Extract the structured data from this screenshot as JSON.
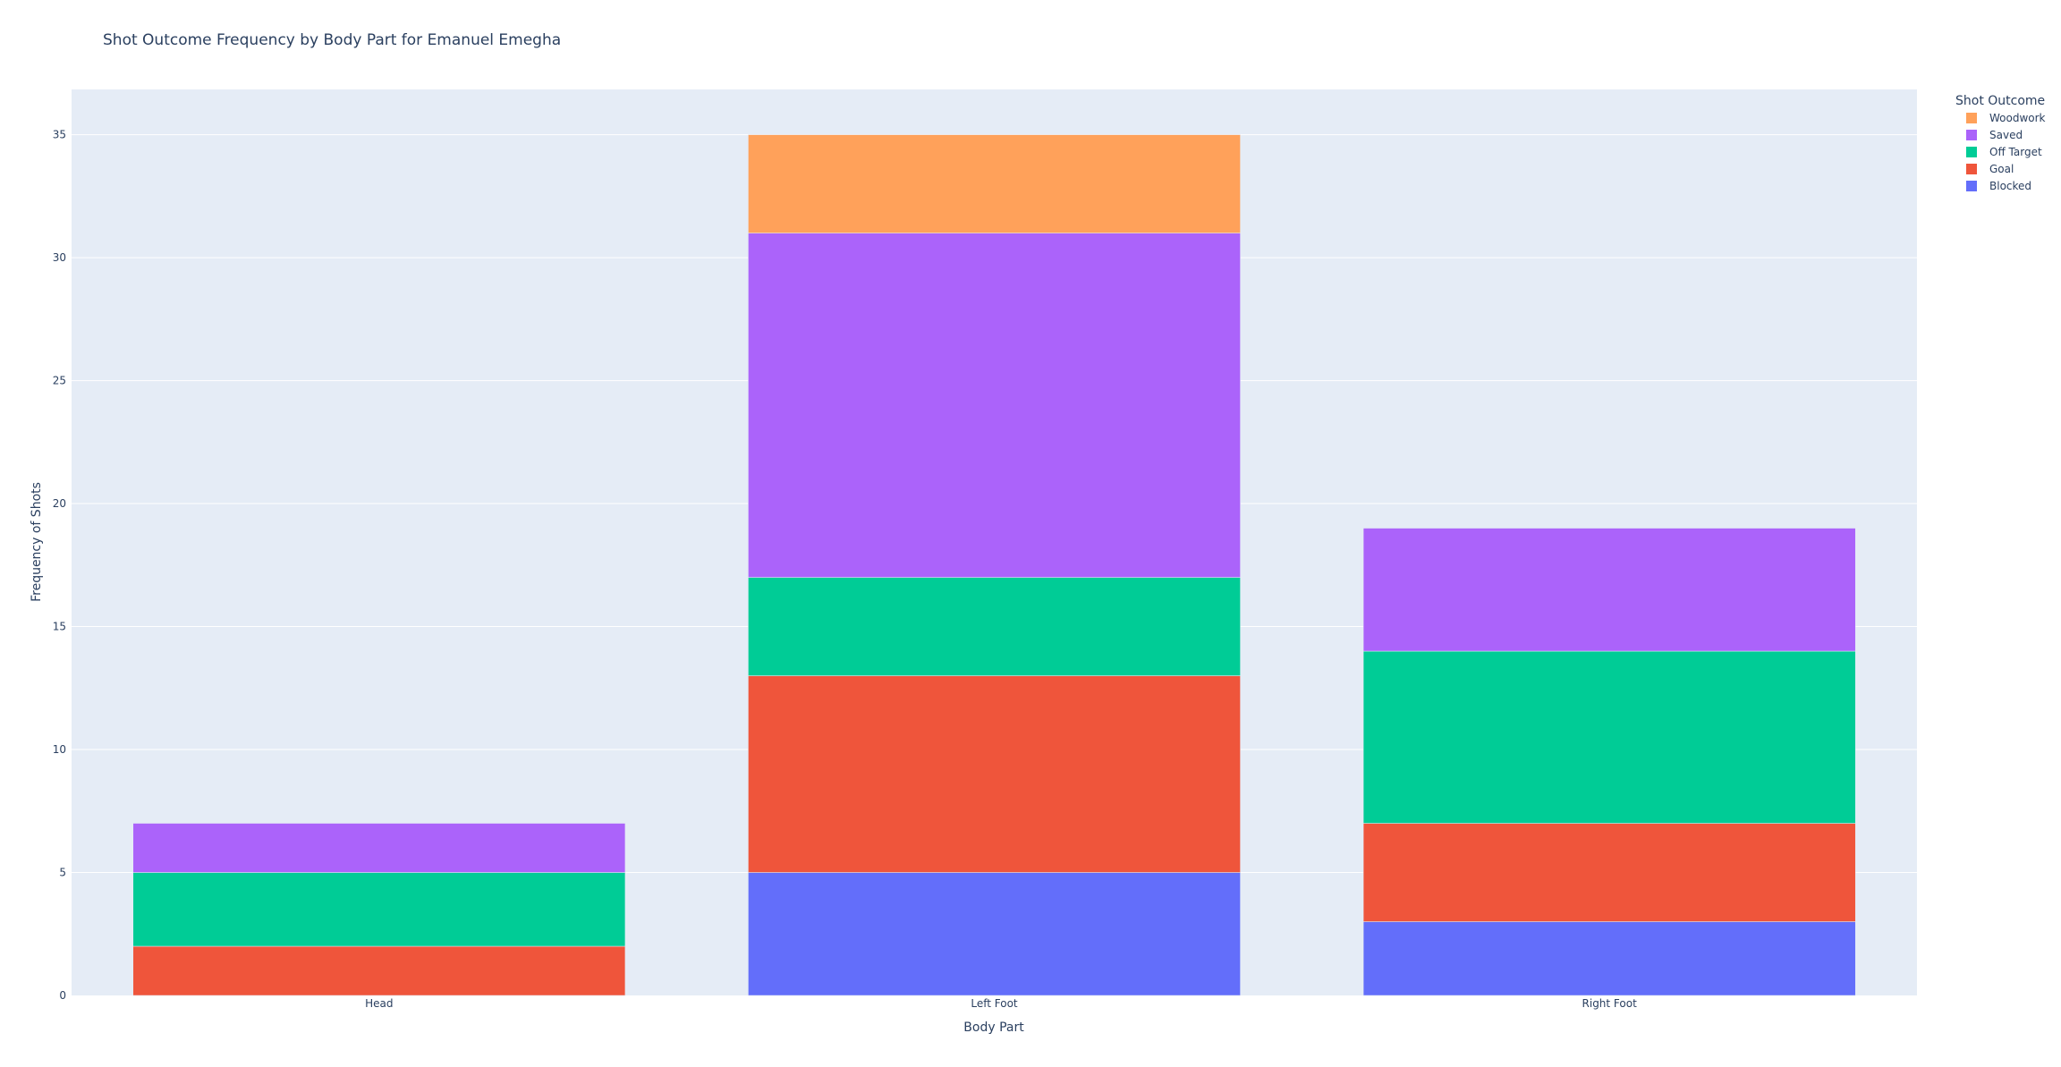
{
  "chart_data": {
    "type": "bar",
    "barmode": "stack",
    "title": "Shot Outcome Frequency by Body Part for Emanuel Emegha",
    "xlabel": "Body Part",
    "ylabel": "Frequency of Shots",
    "categories": [
      "Head",
      "Left Foot",
      "Right Foot"
    ],
    "ylim": [
      0,
      36.84
    ],
    "yticks": [
      0,
      5,
      10,
      15,
      20,
      25,
      30,
      35
    ],
    "grid": true,
    "legend": {
      "title": "Shot Outcome",
      "position": "top-right"
    },
    "series": [
      {
        "name": "Blocked",
        "color": "#636efa",
        "values": [
          0,
          5,
          3
        ]
      },
      {
        "name": "Goal",
        "color": "#ef553b",
        "values": [
          2,
          8,
          4
        ]
      },
      {
        "name": "Off Target",
        "color": "#00cc96",
        "values": [
          3,
          4,
          7
        ]
      },
      {
        "name": "Saved",
        "color": "#ab63fa",
        "values": [
          2,
          14,
          5
        ]
      },
      {
        "name": "Woodwork",
        "color": "#ffa15a",
        "values": [
          0,
          4,
          0
        ]
      }
    ]
  },
  "colors": {
    "plot_background": "#e5ecf6",
    "grid": "#ffffff",
    "text": "#2a3f5f"
  }
}
